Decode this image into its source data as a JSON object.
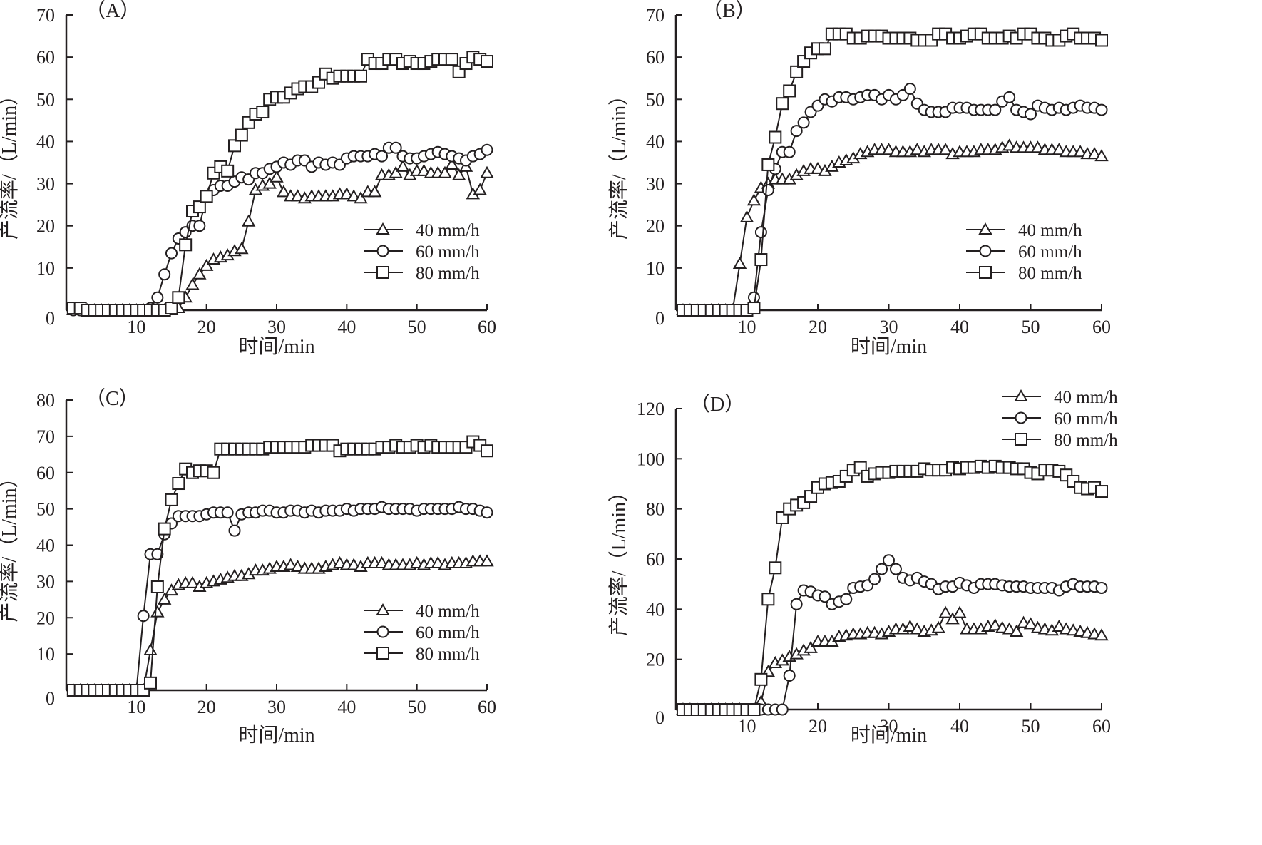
{
  "figure": {
    "x_axis_title": "时间/min",
    "y_axis_title": "产流率/（L/min）"
  },
  "chart_data": [
    {
      "type": "line",
      "panel": "（A）",
      "xlabel": "时间/min",
      "ylabel": "产流率/（L/min）",
      "xlim": [
        0,
        60
      ],
      "ylim": [
        0,
        70
      ],
      "xticks": [
        0,
        10,
        20,
        30,
        40,
        50,
        60
      ],
      "yticks": [
        0,
        10,
        20,
        30,
        40,
        50,
        60,
        70
      ],
      "legend": "bottom-right",
      "x": [
        1,
        2,
        3,
        4,
        5,
        6,
        7,
        8,
        9,
        10,
        11,
        12,
        13,
        14,
        15,
        16,
        17,
        18,
        19,
        20,
        21,
        22,
        23,
        24,
        25,
        26,
        27,
        28,
        29,
        30,
        31,
        32,
        33,
        34,
        35,
        36,
        37,
        38,
        39,
        40,
        41,
        42,
        43,
        44,
        45,
        46,
        47,
        48,
        49,
        50,
        51,
        52,
        53,
        54,
        55,
        56,
        57,
        58,
        59,
        60
      ],
      "series": [
        {
          "name": "40 mm/h",
          "marker": "triangle",
          "values": [
            0,
            0,
            0,
            0,
            0,
            0,
            0,
            0,
            0,
            0,
            0,
            0,
            0,
            0,
            0,
            0.5,
            3,
            6,
            8.5,
            10.5,
            12,
            12.5,
            13,
            14,
            14.5,
            21,
            28.5,
            29.5,
            30,
            31.5,
            28,
            27,
            27,
            26.5,
            27,
            27,
            27,
            27,
            27.5,
            27.5,
            27,
            26.5,
            28,
            28,
            32,
            32,
            32.5,
            34,
            32,
            33,
            33,
            32.5,
            32.5,
            32.5,
            34.5,
            32,
            34,
            27.5,
            28.5,
            32.5
          ]
        },
        {
          "name": "60 mm/h",
          "marker": "circle",
          "values": [
            0,
            0,
            0,
            0,
            0,
            0,
            0,
            0,
            0,
            0,
            0,
            0.5,
            3,
            8.5,
            13.5,
            17,
            18.5,
            20,
            20,
            27,
            28.5,
            29.5,
            29.5,
            30.5,
            31.5,
            31,
            32.5,
            32.5,
            33.5,
            34,
            35,
            34.5,
            35.5,
            35.5,
            34,
            35,
            34.5,
            35,
            34.5,
            36,
            36.5,
            36.5,
            36.5,
            37,
            36.5,
            38.5,
            38.5,
            36.5,
            36,
            36,
            36.5,
            37,
            37.5,
            37,
            36.5,
            36,
            35.5,
            36.5,
            37,
            38
          ]
        },
        {
          "name": "80 mm/h",
          "marker": "square",
          "values": [
            0.5,
            0.5,
            0,
            0,
            0,
            0,
            0,
            0,
            0,
            0,
            0,
            0,
            0,
            0,
            0.5,
            3,
            15.5,
            23.5,
            24.5,
            27,
            32.5,
            34,
            33,
            39,
            41.5,
            44.5,
            46.5,
            47,
            50,
            50.5,
            50.5,
            51.5,
            52.5,
            53,
            53,
            54,
            56,
            55,
            55.5,
            55.5,
            55.5,
            55.5,
            59.5,
            58.5,
            58.5,
            59.5,
            59.5,
            58.5,
            59,
            58.5,
            58.5,
            59,
            59.5,
            59.5,
            59.5,
            56.5,
            58.5,
            60,
            59.5,
            59
          ]
        }
      ]
    },
    {
      "type": "line",
      "panel": "（B）",
      "xlabel": "时间/min",
      "ylabel": "产流率/（L/min）",
      "xlim": [
        0,
        60
      ],
      "ylim": [
        0,
        70
      ],
      "xticks": [
        0,
        10,
        20,
        30,
        40,
        50,
        60
      ],
      "yticks": [
        0,
        10,
        20,
        30,
        40,
        50,
        60,
        70
      ],
      "legend": "bottom-right",
      "x": [
        1,
        2,
        3,
        4,
        5,
        6,
        7,
        8,
        9,
        10,
        11,
        12,
        13,
        14,
        15,
        16,
        17,
        18,
        19,
        20,
        21,
        22,
        23,
        24,
        25,
        26,
        27,
        28,
        29,
        30,
        31,
        32,
        33,
        34,
        35,
        36,
        37,
        38,
        39,
        40,
        41,
        42,
        43,
        44,
        45,
        46,
        47,
        48,
        49,
        50,
        51,
        52,
        53,
        54,
        55,
        56,
        57,
        58,
        59,
        60
      ],
      "series": [
        {
          "name": "40 mm/h",
          "marker": "triangle",
          "values": [
            0,
            0,
            0,
            0,
            0,
            0,
            0,
            0,
            11,
            22,
            26,
            29,
            30,
            31,
            31,
            31,
            32,
            33,
            33.5,
            33.5,
            33,
            34,
            35,
            35.5,
            36,
            37,
            37.5,
            38,
            38,
            38,
            37.5,
            37.5,
            37.5,
            38,
            37.5,
            38,
            38,
            38,
            37,
            37.5,
            37.5,
            37.5,
            38,
            38,
            38,
            38.5,
            39,
            38.5,
            38.5,
            38.5,
            38.5,
            38,
            38,
            38,
            37.5,
            37.5,
            37.5,
            37,
            37,
            36.5
          ]
        },
        {
          "name": "60 mm/h",
          "marker": "circle",
          "values": [
            0,
            0,
            0,
            0,
            0,
            0,
            0,
            0,
            0,
            0,
            3,
            18.5,
            28.5,
            33.5,
            37.5,
            37.5,
            42.5,
            44.5,
            47,
            48.5,
            50,
            49.5,
            50.5,
            50.5,
            50,
            50.5,
            51,
            51,
            50,
            51,
            50,
            51,
            52.5,
            49,
            47.5,
            47,
            47,
            47,
            48,
            48,
            48,
            47.5,
            47.5,
            47.5,
            47.5,
            49.5,
            50.5,
            47.5,
            47,
            46.5,
            48.5,
            48,
            47.5,
            48,
            47.5,
            48,
            48.5,
            48,
            48,
            47.5
          ]
        },
        {
          "name": "80 mm/h",
          "marker": "square",
          "values": [
            0,
            0,
            0,
            0,
            0,
            0,
            0,
            0,
            0,
            0,
            0.5,
            12,
            34.5,
            41,
            49,
            52,
            56.5,
            59,
            61,
            62,
            62,
            65.5,
            65.5,
            65.5,
            64.5,
            64.5,
            65,
            65,
            65,
            64.5,
            64.5,
            64.5,
            64.5,
            64,
            64,
            64,
            65.5,
            65.5,
            64.5,
            64.5,
            65,
            65.5,
            65.5,
            64.5,
            64.5,
            64.5,
            65,
            64.5,
            65.5,
            65.5,
            64.5,
            64.5,
            64,
            64,
            65,
            65.5,
            64.5,
            64.5,
            64.5,
            64
          ]
        }
      ]
    },
    {
      "type": "line",
      "panel": "（C）",
      "xlabel": "时间/min",
      "ylabel": "产流率/（L/min）",
      "xlim": [
        0,
        60
      ],
      "ylim": [
        0,
        80
      ],
      "xticks": [
        0,
        10,
        20,
        30,
        40,
        50,
        60
      ],
      "yticks": [
        0,
        10,
        20,
        30,
        40,
        50,
        60,
        70,
        80
      ],
      "legend": "bottom-right",
      "x": [
        1,
        2,
        3,
        4,
        5,
        6,
        7,
        8,
        9,
        10,
        11,
        12,
        13,
        14,
        15,
        16,
        17,
        18,
        19,
        20,
        21,
        22,
        23,
        24,
        25,
        26,
        27,
        28,
        29,
        30,
        31,
        32,
        33,
        34,
        35,
        36,
        37,
        38,
        39,
        40,
        41,
        42,
        43,
        44,
        45,
        46,
        47,
        48,
        49,
        50,
        51,
        52,
        53,
        54,
        55,
        56,
        57,
        58,
        59,
        60
      ],
      "series": [
        {
          "name": "40 mm/h",
          "marker": "triangle",
          "values": [
            0,
            0,
            0,
            0,
            0,
            0,
            0,
            0,
            0,
            0,
            0,
            11,
            21.5,
            25,
            27.5,
            29,
            29.5,
            29.5,
            28.5,
            29.5,
            30,
            30.5,
            31,
            31.5,
            31.5,
            32,
            33,
            33,
            33.5,
            34,
            34,
            34.5,
            34,
            33.5,
            33.5,
            33.5,
            34,
            34.5,
            35,
            34.5,
            34.5,
            34,
            35,
            35,
            35,
            34.5,
            34.5,
            34.5,
            34.5,
            35,
            34.5,
            35,
            35,
            34.5,
            35,
            35,
            35,
            35.5,
            35.5,
            35.5
          ]
        },
        {
          "name": "60 mm/h",
          "marker": "circle",
          "values": [
            0,
            0,
            0,
            0,
            0,
            0,
            0,
            0,
            0,
            0,
            20.5,
            37.5,
            37.5,
            43,
            46,
            48,
            48,
            48,
            48,
            48.5,
            49,
            49,
            49,
            44,
            48.5,
            49,
            49,
            49.5,
            49.5,
            49,
            49,
            49.5,
            49.5,
            49,
            49.5,
            49,
            49.5,
            49.5,
            49.5,
            50,
            49.5,
            50,
            50,
            50,
            50.5,
            50,
            50,
            50,
            50,
            49.5,
            50,
            50,
            50,
            50,
            50,
            50.5,
            50,
            50,
            49.5,
            49
          ]
        },
        {
          "name": "80 mm/h",
          "marker": "square",
          "values": [
            0,
            0,
            0,
            0,
            0,
            0,
            0,
            0,
            0,
            0,
            0,
            2,
            28.5,
            44.5,
            52.5,
            57,
            61,
            60,
            60.5,
            60.5,
            60,
            66.5,
            66.5,
            66.5,
            66.5,
            66.5,
            66.5,
            66.5,
            67,
            67,
            67,
            67,
            67,
            67,
            67.5,
            67.5,
            67.5,
            67.5,
            66,
            66.5,
            66.5,
            66.5,
            66.5,
            66.5,
            67,
            67,
            67.5,
            67,
            67,
            67.5,
            67,
            67.5,
            67,
            67,
            67,
            67,
            67,
            68.5,
            67.5,
            66
          ]
        }
      ]
    },
    {
      "type": "line",
      "panel": "（D）",
      "xlabel": "时间/min",
      "ylabel": "产流率/（L/min）",
      "xlim": [
        0,
        60
      ],
      "ylim": [
        0,
        120
      ],
      "xticks": [
        0,
        10,
        20,
        30,
        40,
        50,
        60
      ],
      "yticks": [
        0,
        20,
        40,
        60,
        80,
        100,
        120
      ],
      "legend": "top-right",
      "x": [
        1,
        2,
        3,
        4,
        5,
        6,
        7,
        8,
        9,
        10,
        11,
        12,
        13,
        14,
        15,
        16,
        17,
        18,
        19,
        20,
        21,
        22,
        23,
        24,
        25,
        26,
        27,
        28,
        29,
        30,
        31,
        32,
        33,
        34,
        35,
        36,
        37,
        38,
        39,
        40,
        41,
        42,
        43,
        44,
        45,
        46,
        47,
        48,
        49,
        50,
        51,
        52,
        53,
        54,
        55,
        56,
        57,
        58,
        59,
        60
      ],
      "series": [
        {
          "name": "40 mm/h",
          "marker": "triangle",
          "values": [
            0,
            0,
            0,
            0,
            0,
            0,
            0,
            0,
            0,
            0,
            0,
            3,
            15,
            18.5,
            19.5,
            21,
            22,
            23.5,
            24.5,
            27,
            27,
            27,
            29,
            29.5,
            30,
            30,
            30.5,
            30.5,
            30,
            31,
            32,
            32,
            33,
            32,
            31,
            31.5,
            32.5,
            38.5,
            36,
            38.5,
            32,
            32,
            32,
            33,
            33.5,
            32.5,
            32,
            31,
            34.5,
            34,
            32.5,
            32,
            31.5,
            33,
            32,
            31.5,
            31,
            30.5,
            30,
            29.5
          ]
        },
        {
          "name": "60 mm/h",
          "marker": "circle",
          "values": [
            0,
            0,
            0,
            0,
            0,
            0,
            0,
            0,
            0,
            0,
            0,
            0,
            0,
            0,
            0,
            13.5,
            42,
            47.5,
            47,
            45.5,
            45,
            42,
            43,
            44,
            48.5,
            49,
            49.5,
            52,
            56,
            59.5,
            56,
            52.5,
            51.5,
            52.5,
            51,
            50,
            48,
            49,
            49,
            50.5,
            49.5,
            48.5,
            50,
            50,
            50,
            49.5,
            49,
            49,
            49,
            48.5,
            48.5,
            48.5,
            48.5,
            47.5,
            49,
            50,
            49,
            49,
            49,
            48.5
          ]
        },
        {
          "name": "80 mm/h",
          "marker": "square",
          "values": [
            0,
            0,
            0,
            0,
            0,
            0,
            0,
            0,
            0,
            0,
            0,
            12,
            44,
            56.5,
            76.5,
            80,
            81.5,
            82.5,
            85,
            88.5,
            90,
            90.5,
            91,
            93,
            95.5,
            96.5,
            93,
            94,
            94.5,
            94.5,
            95,
            95,
            95,
            95,
            96,
            95.5,
            95.5,
            95.5,
            96.5,
            96,
            96.5,
            96.5,
            97,
            96.5,
            97,
            96.5,
            96.5,
            96,
            96,
            94.5,
            94,
            95.5,
            95.5,
            95,
            93.5,
            91,
            88.5,
            88,
            88.5,
            87
          ]
        }
      ]
    }
  ]
}
